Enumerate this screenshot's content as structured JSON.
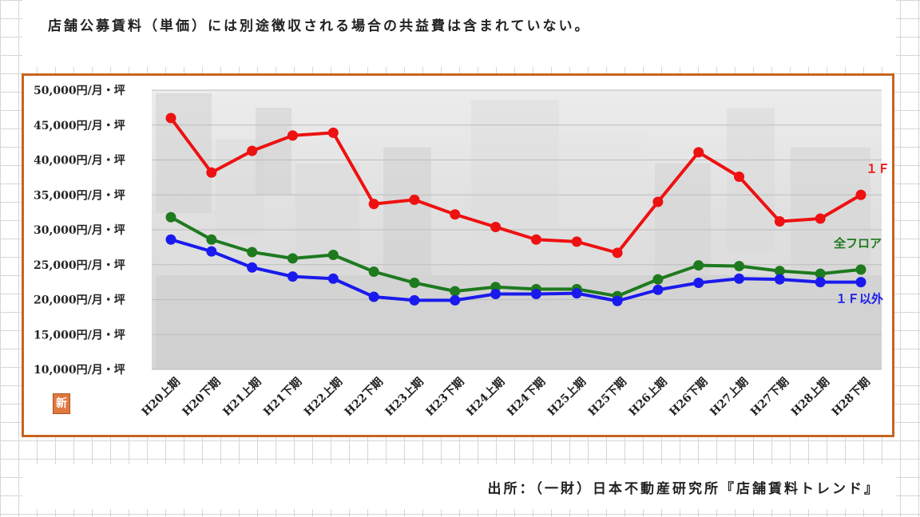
{
  "note": "店舗公募賃料（単価）には別途徴収される場合の共益費は含まれていない。",
  "source": "出所：（一財）日本不動産研究所『店舗賃料トレンド』",
  "badge": "新",
  "chart_data": {
    "type": "line",
    "title": "",
    "xlabel": "",
    "ylabel": "",
    "ylim": [
      10000,
      50000
    ],
    "y_ticks": [
      {
        "value": 50000,
        "label": "50,000円/月・坪"
      },
      {
        "value": 45000,
        "label": "45,000円/月・坪"
      },
      {
        "value": 40000,
        "label": "40,000円/月・坪"
      },
      {
        "value": 35000,
        "label": "35,000円/月・坪"
      },
      {
        "value": 30000,
        "label": "30,000円/月・坪"
      },
      {
        "value": 25000,
        "label": "25,000円/月・坪"
      },
      {
        "value": 20000,
        "label": "20,000円/月・坪"
      },
      {
        "value": 15000,
        "label": "15,000円/月・坪"
      },
      {
        "value": 10000,
        "label": "10,000円/月・坪"
      }
    ],
    "categories": [
      "H20上期",
      "H20下期",
      "H21上期",
      "H21下期",
      "H22上期",
      "H22下期",
      "H23上期",
      "H23下期",
      "H24上期",
      "H24下期",
      "H25上期",
      "H25下期",
      "H26上期",
      "H26下期",
      "H27上期",
      "H27下期",
      "H28上期",
      "H28下期"
    ],
    "grid": true,
    "series": [
      {
        "name": "１Ｆ",
        "color": "#ee1111",
        "values": [
          46000,
          38200,
          41300,
          43500,
          43900,
          33700,
          34300,
          32200,
          30400,
          28600,
          28300,
          26700,
          34000,
          41100,
          37600,
          31200,
          31600,
          35000
        ]
      },
      {
        "name": "全フロア",
        "color": "#1e7a1e",
        "values": [
          31800,
          28600,
          26800,
          25900,
          26400,
          24000,
          22400,
          21200,
          21800,
          21500,
          21500,
          20500,
          22900,
          24900,
          24800,
          24100,
          23700,
          24300
        ]
      },
      {
        "name": "１Ｆ以外",
        "color": "#1a1aee",
        "values": [
          28600,
          26900,
          24600,
          23300,
          23000,
          20400,
          19900,
          19900,
          20800,
          20800,
          20900,
          19800,
          21400,
          22400,
          23000,
          22900,
          22500,
          22500
        ]
      }
    ]
  }
}
